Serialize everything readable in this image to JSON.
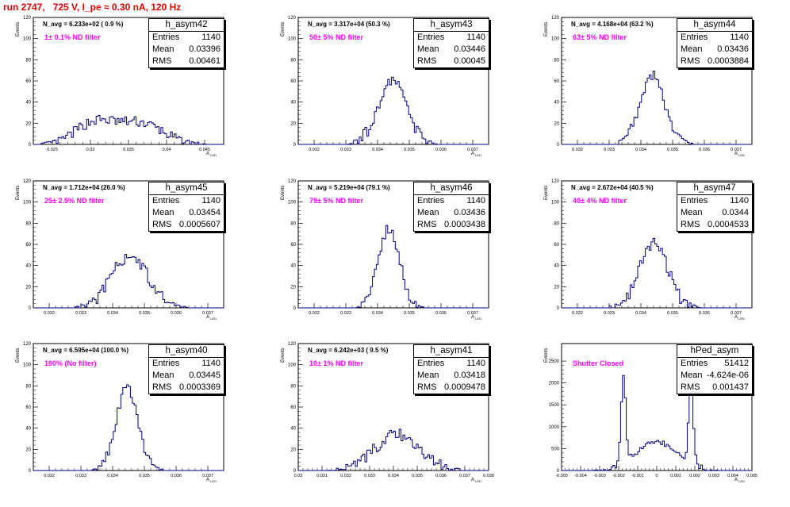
{
  "run_title": "run 2747,   725 V, I_pe ≈ 0.30 nA, 120 Hz",
  "ytitle": "Events",
  "xtitle_main": "A",
  "xtitle_sub": "LED",
  "colors": {
    "histo": "#000080",
    "filter": "#ff00ff",
    "run": "#e00000"
  },
  "chart_data": [
    {
      "type": "bar",
      "name": "h_asym42",
      "n_avg": "N_avg = 6.233e+02 ( 0.9 %)",
      "filter": "1± 0.1% ND filter",
      "stats": [
        {
          "label": "Entries",
          "value": "1140"
        },
        {
          "label": "Mean",
          "value": "0.03396"
        },
        {
          "label": "RMS",
          "value": "0.00461"
        }
      ],
      "xlim": [
        0.0225,
        0.0475
      ],
      "ylim": [
        0,
        120
      ],
      "xticks": [
        0.025,
        0.03,
        0.035,
        0.04,
        0.045
      ],
      "yticks": [
        0,
        20,
        40,
        60,
        80,
        100,
        120
      ],
      "xticklabels": [
        "0.025",
        "0.03",
        "0.035",
        "0.04",
        "0.045"
      ],
      "yticklabels": [
        "0",
        "20",
        "40",
        "60",
        "80",
        "100",
        "120"
      ],
      "peaks": [
        {
          "mu": 0.0305,
          "sigma": 0.0025,
          "amp": 20
        },
        {
          "mu": 0.0365,
          "sigma": 0.003,
          "amp": 20
        }
      ],
      "nbins": 100,
      "noise": 5
    },
    {
      "type": "bar",
      "name": "h_asym43",
      "n_avg": "N_avg = 3.317e+04 (50.3 %)",
      "filter": "50± 5% ND filter",
      "stats": [
        {
          "label": "Entries",
          "value": "1140"
        },
        {
          "label": "Mean",
          "value": "0.03446"
        },
        {
          "label": "RMS",
          "value": "0.00045"
        }
      ],
      "xlim": [
        0.0315,
        0.0375
      ],
      "ylim": [
        0,
        120
      ],
      "xticks": [
        0.032,
        0.033,
        0.034,
        0.035,
        0.036,
        0.037
      ],
      "yticks": [
        0,
        20,
        40,
        60,
        80,
        100,
        120
      ],
      "xticklabels": [
        "0.032",
        "0.033",
        "0.034",
        "0.035",
        "0.036",
        "0.037"
      ],
      "yticklabels": [
        "0",
        "20",
        "40",
        "60",
        "80",
        "100",
        "120"
      ],
      "peaks": [
        {
          "mu": 0.03446,
          "sigma": 0.00045,
          "amp": 60
        }
      ],
      "nbins": 100,
      "noise": 6
    },
    {
      "type": "bar",
      "name": "h_asym44",
      "n_avg": "N_avg = 4.168e+04 (63.2 %)",
      "filter": "63± 5% ND filter",
      "stats": [
        {
          "label": "Entries",
          "value": "1140"
        },
        {
          "label": "Mean",
          "value": "0.03436"
        },
        {
          "label": "RMS",
          "value": "0.0003884"
        }
      ],
      "xlim": [
        0.0315,
        0.0375
      ],
      "ylim": [
        0,
        120
      ],
      "xticks": [
        0.032,
        0.033,
        0.034,
        0.035,
        0.036,
        0.037
      ],
      "yticks": [
        0,
        20,
        40,
        60,
        80,
        100,
        120
      ],
      "xticklabels": [
        "0.032",
        "0.033",
        "0.034",
        "0.035",
        "0.036",
        "0.037"
      ],
      "yticklabels": [
        "0",
        "20",
        "40",
        "60",
        "80",
        "100",
        "120"
      ],
      "peaks": [
        {
          "mu": 0.03436,
          "sigma": 0.00039,
          "amp": 66
        }
      ],
      "nbins": 100,
      "noise": 5
    },
    {
      "type": "bar",
      "name": "h_asym45",
      "n_avg": "N_avg = 1.712e+04 (26.0 %)",
      "filter": "25± 2.5% ND filter",
      "stats": [
        {
          "label": "Entries",
          "value": "1140"
        },
        {
          "label": "Mean",
          "value": "0.03454"
        },
        {
          "label": "RMS",
          "value": "0.0005607"
        }
      ],
      "xlim": [
        0.0315,
        0.0375
      ],
      "ylim": [
        0,
        120
      ],
      "xticks": [
        0.032,
        0.033,
        0.034,
        0.035,
        0.036,
        0.037
      ],
      "yticks": [
        0,
        20,
        40,
        60,
        80,
        100,
        120
      ],
      "xticklabels": [
        "0.032",
        "0.033",
        "0.034",
        "0.035",
        "0.036",
        "0.037"
      ],
      "yticklabels": [
        "0",
        "20",
        "40",
        "60",
        "80",
        "100",
        "120"
      ],
      "peaks": [
        {
          "mu": 0.03454,
          "sigma": 0.00056,
          "amp": 50
        }
      ],
      "nbins": 100,
      "noise": 6
    },
    {
      "type": "bar",
      "name": "h_asym46",
      "n_avg": "N_avg = 5.219e+04 (79.1 %)",
      "filter": "79± 5% ND filter",
      "stats": [
        {
          "label": "Entries",
          "value": "1140"
        },
        {
          "label": "Mean",
          "value": "0.03436"
        },
        {
          "label": "RMS",
          "value": "0.0003438"
        }
      ],
      "xlim": [
        0.0315,
        0.0375
      ],
      "ylim": [
        0,
        120
      ],
      "xticks": [
        0.032,
        0.033,
        0.034,
        0.035,
        0.036,
        0.037
      ],
      "yticks": [
        0,
        20,
        40,
        60,
        80,
        100,
        120
      ],
      "xticklabels": [
        "0.032",
        "0.033",
        "0.034",
        "0.035",
        "0.036",
        "0.037"
      ],
      "yticklabels": [
        "0",
        "20",
        "40",
        "60",
        "80",
        "100",
        "120"
      ],
      "peaks": [
        {
          "mu": 0.03436,
          "sigma": 0.00034,
          "amp": 75
        }
      ],
      "nbins": 100,
      "noise": 5
    },
    {
      "type": "bar",
      "name": "h_asym47",
      "n_avg": "N_avg = 2.672e+04 (40.5 %)",
      "filter": "40± 4% ND filter",
      "stats": [
        {
          "label": "Entries",
          "value": "1140"
        },
        {
          "label": "Mean",
          "value": "0.0344"
        },
        {
          "label": "RMS",
          "value": "0.0004533"
        }
      ],
      "xlim": [
        0.0315,
        0.0375
      ],
      "ylim": [
        0,
        120
      ],
      "xticks": [
        0.032,
        0.033,
        0.034,
        0.035,
        0.036,
        0.037
      ],
      "yticks": [
        0,
        20,
        40,
        60,
        80,
        100,
        120
      ],
      "xticklabels": [
        "0.032",
        "0.033",
        "0.034",
        "0.035",
        "0.036",
        "0.037"
      ],
      "yticklabels": [
        "0",
        "20",
        "40",
        "60",
        "80",
        "100",
        "120"
      ],
      "peaks": [
        {
          "mu": 0.0344,
          "sigma": 0.00045,
          "amp": 60
        }
      ],
      "nbins": 100,
      "noise": 6
    },
    {
      "type": "bar",
      "name": "h_asym40",
      "n_avg": "N_avg = 6.595e+04 (100.0 %)",
      "filter": "100% (No filter)",
      "stats": [
        {
          "label": "Entries",
          "value": "1140"
        },
        {
          "label": "Mean",
          "value": "0.03445"
        },
        {
          "label": "RMS",
          "value": "0.0003369"
        }
      ],
      "xlim": [
        0.0315,
        0.0375
      ],
      "ylim": [
        0,
        120
      ],
      "xticks": [
        0.032,
        0.033,
        0.034,
        0.035,
        0.036,
        0.037
      ],
      "yticks": [
        0,
        20,
        40,
        60,
        80,
        100,
        120
      ],
      "xticklabels": [
        "0.032",
        "0.033",
        "0.034",
        "0.035",
        "0.036",
        "0.037"
      ],
      "yticklabels": [
        "0",
        "20",
        "40",
        "60",
        "80",
        "100",
        "120"
      ],
      "peaks": [
        {
          "mu": 0.03445,
          "sigma": 0.00034,
          "amp": 78
        }
      ],
      "nbins": 100,
      "noise": 5
    },
    {
      "type": "bar",
      "name": "h_asym41",
      "n_avg": "N_avg = 6.242e+03 ( 9.5 %)",
      "filter": "10± 1% ND filter",
      "stats": [
        {
          "label": "Entries",
          "value": "1140"
        },
        {
          "label": "Mean",
          "value": "0.03418"
        },
        {
          "label": "RMS",
          "value": "0.0009478"
        }
      ],
      "xlim": [
        0.03,
        0.038
      ],
      "ylim": [
        0,
        120
      ],
      "xticks": [
        0.03,
        0.031,
        0.032,
        0.033,
        0.034,
        0.035,
        0.036,
        0.037,
        0.038
      ],
      "yticks": [
        0,
        20,
        40,
        60,
        80,
        100,
        120
      ],
      "xticklabels": [
        "0.03",
        "0.031",
        "0.032",
        "0.033",
        "0.034",
        "0.035",
        "0.036",
        "0.037",
        "0.038"
      ],
      "yticklabels": [
        "0",
        "20",
        "40",
        "60",
        "80",
        "100",
        "120"
      ],
      "peaks": [
        {
          "mu": 0.03418,
          "sigma": 0.00095,
          "amp": 34
        }
      ],
      "nbins": 100,
      "noise": 6
    },
    {
      "type": "bar",
      "name": "hPed_asym",
      "n_avg": "",
      "filter": "Shutter Closed",
      "stats": [
        {
          "label": "Entries",
          "value": "51412"
        },
        {
          "label": "Mean",
          "value": "-4.624e-06"
        },
        {
          "label": "RMS",
          "value": "0.001437"
        }
      ],
      "xlim": [
        -0.005,
        0.005
      ],
      "ylim": [
        0,
        2900
      ],
      "xticks": [
        -0.005,
        -0.004,
        -0.003,
        -0.002,
        -0.001,
        0,
        0.001,
        0.002,
        0.003,
        0.004,
        0.005
      ],
      "yticks": [
        0,
        500,
        1000,
        1500,
        2000,
        2500
      ],
      "xticklabels": [
        "-0.005",
        "-0.004",
        "-0.003",
        "-0.002",
        "-0.001",
        "0",
        "0.001",
        "0.002",
        "0.003",
        "0.004",
        "0.005"
      ],
      "yticklabels": [
        "0",
        "500",
        "1000",
        "1500",
        "2000",
        "2500"
      ],
      "peaks": [
        {
          "mu": -0.00175,
          "sigma": 0.00012,
          "amp": 2000
        },
        {
          "mu": 0.0018,
          "sigma": 0.00012,
          "amp": 1800
        },
        {
          "mu": 0.0,
          "sigma": 0.0011,
          "amp": 650
        }
      ],
      "nbins": 100,
      "noise": 60,
      "cutoff": [
        -0.0024,
        0.0024
      ]
    }
  ]
}
